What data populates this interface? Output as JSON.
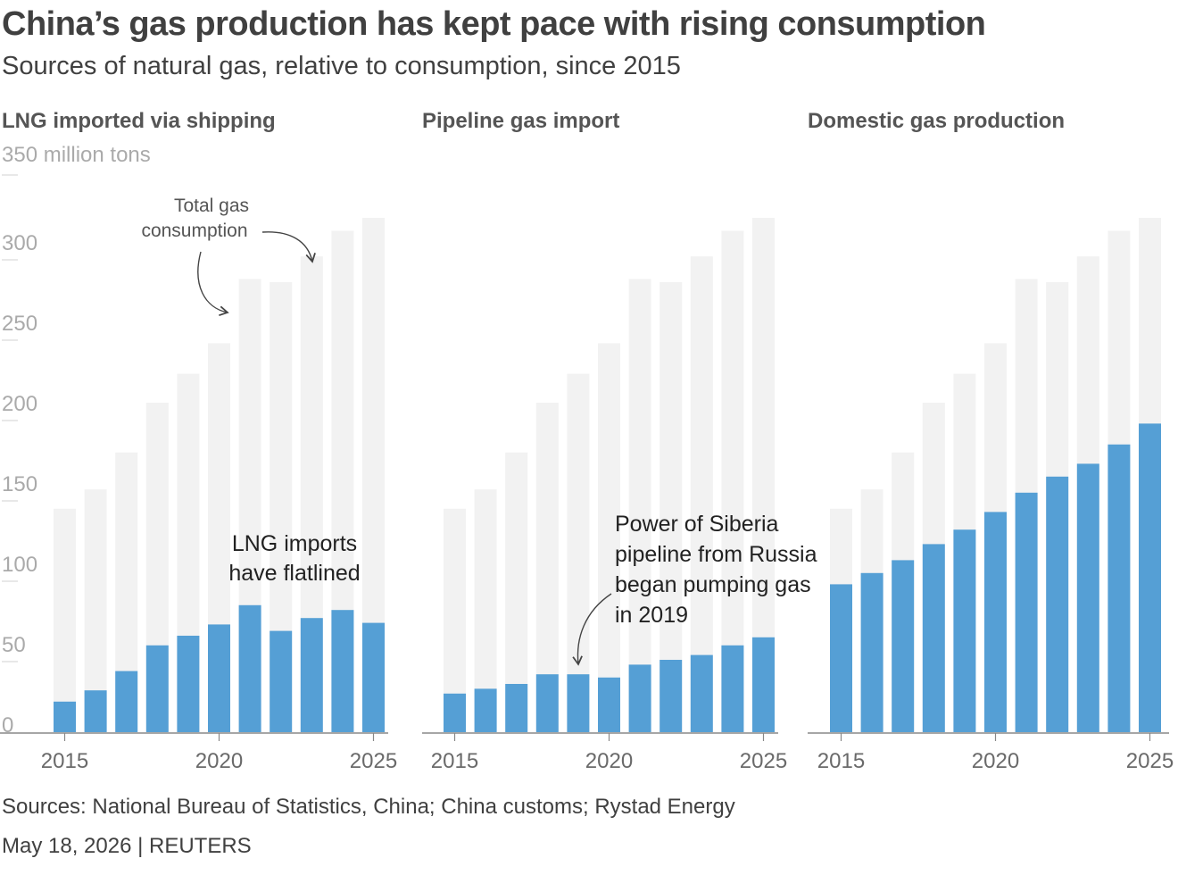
{
  "header": {
    "title": "China’s gas production has kept pace with rising consumption",
    "subtitle": "Sources of natural gas, relative to consumption, since 2015"
  },
  "footer": {
    "source": "Sources: National Bureau of Statistics, China; China customs; Rystad Energy",
    "dateline": "May 18, 2026 | REUTERS"
  },
  "colors": {
    "consumption": "#f2f2f2",
    "source_bar": "#559fd5",
    "axis": "#888888"
  },
  "chart_data": {
    "type": "bar",
    "unit_label": "350 million tons",
    "y_ticks": [
      "300",
      "250",
      "200",
      "150",
      "100",
      "50",
      "0"
    ],
    "ylim": [
      0,
      350
    ],
    "x": [
      2015,
      2016,
      2017,
      2018,
      2019,
      2020,
      2021,
      2022,
      2023,
      2024,
      2025
    ],
    "x_tick_labels": [
      "2015",
      "2020",
      "2025"
    ],
    "consumption": [
      139,
      151,
      174,
      205,
      223,
      242,
      282,
      280,
      296,
      312,
      320
    ],
    "panels": [
      {
        "title": "LNG imported via shipping",
        "values": [
          19,
          26,
          38,
          54,
          60,
          67,
          79,
          63,
          71,
          76,
          68
        ],
        "annotations": [
          {
            "lines": [
              "LNG imports",
              "have flatlined"
            ]
          }
        ]
      },
      {
        "title": "Pipeline gas import",
        "values": [
          24,
          27,
          30,
          36,
          36,
          34,
          42,
          45,
          48,
          54,
          59
        ],
        "annotations": [
          {
            "lines": [
              "Power of Siberia",
              "pipeline from Russia",
              "began pumping gas",
              "in 2019"
            ]
          }
        ]
      },
      {
        "title": "Domestic gas production",
        "values": [
          92,
          99,
          107,
          117,
          126,
          137,
          149,
          159,
          167,
          179,
          192
        ],
        "annotations": []
      }
    ],
    "consumption_annotation": {
      "lines": [
        "Total gas",
        "consumption"
      ]
    }
  }
}
